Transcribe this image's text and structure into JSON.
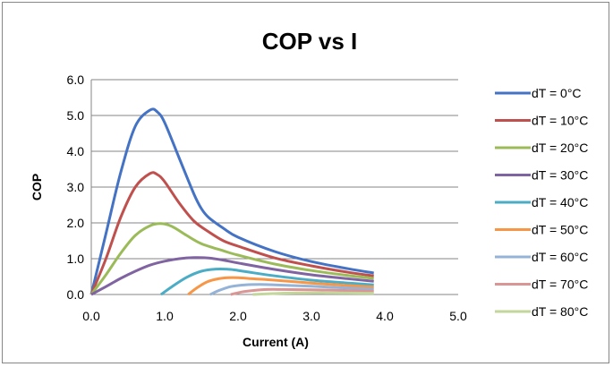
{
  "chart_data": {
    "type": "line",
    "title": "COP vs I",
    "xlabel": "Current (A)",
    "ylabel": "COP",
    "xlim": [
      0,
      5
    ],
    "ylim": [
      0,
      6
    ],
    "xticks": [
      "0.0",
      "1.0",
      "2.0",
      "3.0",
      "4.0",
      "5.0"
    ],
    "yticks": [
      "0.0",
      "1.0",
      "2.0",
      "3.0",
      "4.0",
      "5.0",
      "6.0"
    ],
    "grid": "horizontal",
    "legend_position": "right",
    "series": [
      {
        "name": "dT = 0°C",
        "color": "#4472C4",
        "x": [
          0,
          0.2,
          0.4,
          0.6,
          0.8,
          0.9,
          1.0,
          1.2,
          1.4,
          1.5,
          1.6,
          1.8,
          2.0,
          2.5,
          3.0,
          3.5,
          3.85
        ],
        "y": [
          0,
          1.7,
          3.4,
          4.7,
          5.15,
          5.1,
          4.8,
          3.8,
          2.8,
          2.4,
          2.15,
          1.85,
          1.6,
          1.2,
          0.92,
          0.72,
          0.6
        ]
      },
      {
        "name": "dT = 10°C",
        "color": "#C0504D",
        "x": [
          0,
          0.2,
          0.4,
          0.6,
          0.8,
          0.9,
          1.0,
          1.2,
          1.4,
          1.6,
          1.8,
          2.0,
          2.5,
          3.0,
          3.5,
          3.85
        ],
        "y": [
          0,
          1.0,
          2.15,
          3.0,
          3.38,
          3.35,
          3.15,
          2.55,
          2.05,
          1.75,
          1.5,
          1.35,
          1.02,
          0.8,
          0.62,
          0.52
        ]
      },
      {
        "name": "dT = 20°C",
        "color": "#9BBB59",
        "x": [
          0,
          0.2,
          0.4,
          0.6,
          0.8,
          0.95,
          1.1,
          1.3,
          1.5,
          1.8,
          2.0,
          2.5,
          3.0,
          3.5,
          3.85
        ],
        "y": [
          0,
          0.55,
          1.15,
          1.65,
          1.92,
          1.98,
          1.9,
          1.65,
          1.42,
          1.22,
          1.1,
          0.85,
          0.67,
          0.53,
          0.45
        ]
      },
      {
        "name": "dT = 30°C",
        "color": "#8064A2",
        "x": [
          0,
          0.2,
          0.4,
          0.6,
          0.8,
          1.0,
          1.2,
          1.4,
          1.6,
          1.8,
          2.0,
          2.5,
          3.0,
          3.5,
          3.85
        ],
        "y": [
          0,
          0.22,
          0.45,
          0.65,
          0.82,
          0.93,
          1.0,
          1.03,
          1.02,
          0.96,
          0.88,
          0.7,
          0.55,
          0.44,
          0.37
        ]
      },
      {
        "name": "dT = 40°C",
        "color": "#4BACC6",
        "x": [
          0.95,
          1.1,
          1.3,
          1.5,
          1.7,
          1.9,
          2.1,
          2.5,
          3.0,
          3.5,
          3.85
        ],
        "y": [
          0,
          0.22,
          0.48,
          0.65,
          0.71,
          0.7,
          0.64,
          0.52,
          0.4,
          0.32,
          0.27
        ]
      },
      {
        "name": "dT = 50°C",
        "color": "#F79646",
        "x": [
          1.32,
          1.45,
          1.6,
          1.8,
          2.0,
          2.2,
          2.5,
          3.0,
          3.5,
          3.85
        ],
        "y": [
          0,
          0.2,
          0.37,
          0.46,
          0.47,
          0.44,
          0.4,
          0.32,
          0.25,
          0.21
        ]
      },
      {
        "name": "dT = 60°C",
        "color": "#95B3D7",
        "x": [
          1.62,
          1.75,
          1.9,
          2.1,
          2.3,
          2.5,
          3.0,
          3.5,
          3.85
        ],
        "y": [
          0,
          0.12,
          0.22,
          0.27,
          0.28,
          0.27,
          0.23,
          0.18,
          0.15
        ]
      },
      {
        "name": "dT = 70°C",
        "color": "#D99694",
        "x": [
          1.9,
          2.05,
          2.2,
          2.4,
          2.6,
          3.0,
          3.5,
          3.85
        ],
        "y": [
          0,
          0.07,
          0.11,
          0.14,
          0.14,
          0.13,
          0.11,
          0.09
        ]
      },
      {
        "name": "dT = 80°C",
        "color": "#C3D69B",
        "x": [
          2.2,
          2.4,
          2.6,
          2.9,
          3.2,
          3.5,
          3.85
        ],
        "y": [
          0,
          0.02,
          0.035,
          0.045,
          0.045,
          0.04,
          0.035
        ]
      }
    ]
  }
}
